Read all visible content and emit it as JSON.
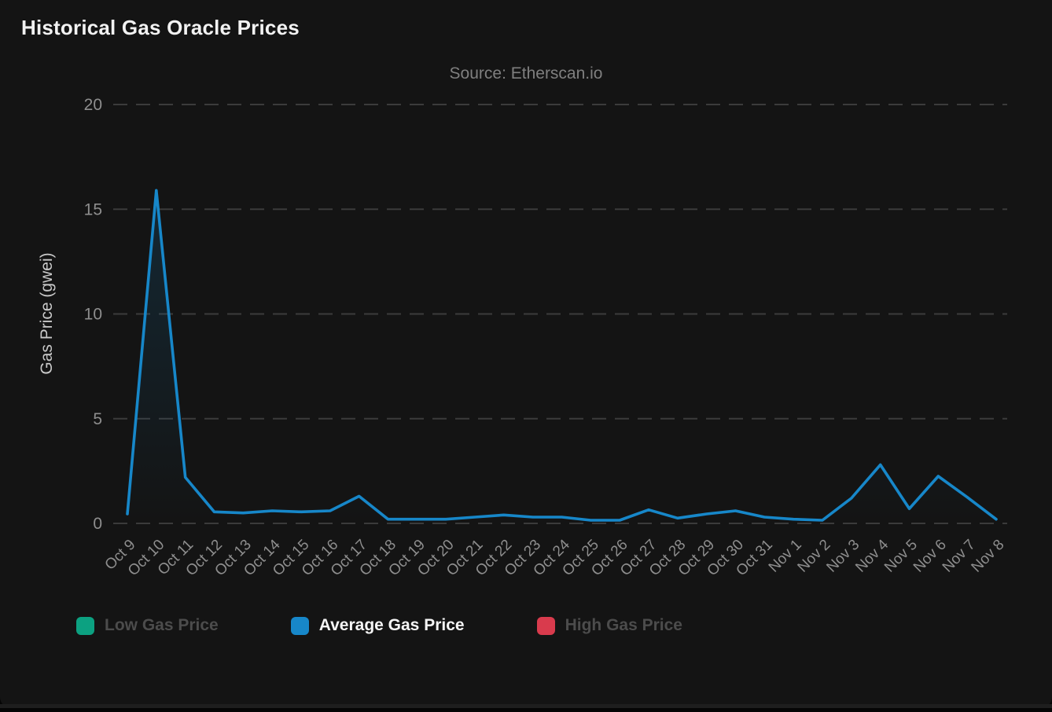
{
  "header": {
    "title": "Historical Gas Oracle Prices",
    "subtitle": "Source: Etherscan.io"
  },
  "colors": {
    "card_background": "#141414",
    "grid_line": "#3b3b3b",
    "tick_text": "#8e8e8e",
    "axis_title_text": "#c9c9c9",
    "subtitle_text": "#7f7f7f",
    "title_text": "#f2f2f2",
    "legend_dim_text": "#4c4c4c",
    "line_blue": "#1787c9",
    "low_teal": "#0ca181",
    "high_red": "#d93b4d"
  },
  "legend": {
    "items": [
      {
        "label": "Low Gas Price",
        "color": "#0ca181",
        "dimmed": true,
        "icon": "legend-swatch"
      },
      {
        "label": "Average Gas Price",
        "color": "#1787c9",
        "dimmed": false,
        "icon": "legend-swatch"
      },
      {
        "label": "High Gas Price",
        "color": "#d93b4d",
        "dimmed": true,
        "icon": "legend-swatch"
      }
    ]
  },
  "chart_data": {
    "type": "line",
    "title": "Historical Gas Oracle Prices",
    "subtitle": "Source: Etherscan.io",
    "xlabel": "",
    "ylabel": "Gas Price (gwei)",
    "ylim": [
      0,
      20
    ],
    "yticks": [
      0,
      5,
      10,
      15,
      20
    ],
    "grid": "horizontal-dashed",
    "legend_position": "bottom",
    "categories": [
      "Oct 9",
      "Oct 10",
      "Oct 11",
      "Oct 12",
      "Oct 13",
      "Oct 14",
      "Oct 15",
      "Oct 16",
      "Oct 17",
      "Oct 18",
      "Oct 19",
      "Oct 20",
      "Oct 21",
      "Oct 22",
      "Oct 23",
      "Oct 24",
      "Oct 25",
      "Oct 26",
      "Oct 27",
      "Oct 28",
      "Oct 29",
      "Oct 30",
      "Oct 31",
      "Nov 1",
      "Nov 2",
      "Nov 3",
      "Nov 4",
      "Nov 5",
      "Nov 6",
      "Nov 7",
      "Nov 8"
    ],
    "series": [
      {
        "name": "Low Gas Price",
        "color": "#0ca181",
        "hidden": true,
        "values": []
      },
      {
        "name": "Average Gas Price",
        "color": "#1787c9",
        "hidden": false,
        "values": [
          0.45,
          15.9,
          2.2,
          0.55,
          0.5,
          0.6,
          0.55,
          0.6,
          1.3,
          0.2,
          0.2,
          0.2,
          0.3,
          0.4,
          0.3,
          0.3,
          0.15,
          0.15,
          0.65,
          0.25,
          0.45,
          0.6,
          0.3,
          0.2,
          0.15,
          1.2,
          2.8,
          0.7,
          2.25,
          1.25,
          0.2
        ]
      },
      {
        "name": "High Gas Price",
        "color": "#d93b4d",
        "hidden": true,
        "values": []
      }
    ]
  }
}
